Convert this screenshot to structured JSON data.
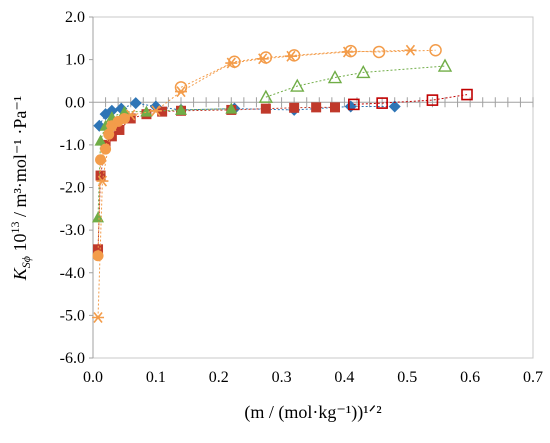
{
  "chart_data": {
    "type": "scatter",
    "xlabel": "(m / (mol·kg⁻¹))¹ᐟ²",
    "ylabel_parts": {
      "k": "K",
      "sub": "Sϕ",
      "mid": " 10",
      "exp": "13",
      "units": " / m³·mol⁻¹ ·Pa⁻¹"
    },
    "xlim": [
      0,
      0.7
    ],
    "ylim": [
      -6.0,
      2.0
    ],
    "x_ticks": [
      "0.0",
      "0.1",
      "0.2",
      "0.3",
      "0.4",
      "0.5",
      "0.6",
      "0.7"
    ],
    "y_ticks": [
      "-6.0",
      "-5.0",
      "-4.0",
      "-3.0",
      "-2.0",
      "-1.0",
      "0.0",
      "1.0",
      "2.0"
    ],
    "grid": false,
    "series": [
      {
        "marker": "diamond-filled",
        "color": "#2e75b6",
        "points": [
          [
            0.01,
            -0.55
          ],
          [
            0.02,
            -0.28
          ],
          [
            0.03,
            -0.2
          ],
          [
            0.045,
            -0.15
          ],
          [
            0.068,
            -0.02
          ],
          [
            0.1,
            -0.1
          ],
          [
            0.14,
            -0.18
          ],
          [
            0.225,
            -0.15
          ],
          [
            0.32,
            -0.18
          ],
          [
            0.41,
            -0.1
          ],
          [
            0.48,
            -0.1
          ]
        ]
      },
      {
        "marker": "square-filled",
        "color": "#c0392b",
        "points": [
          [
            0.008,
            -3.45
          ],
          [
            0.012,
            -1.72
          ],
          [
            0.02,
            -1.0
          ],
          [
            0.03,
            -0.8
          ],
          [
            0.042,
            -0.65
          ],
          [
            0.06,
            -0.38
          ],
          [
            0.085,
            -0.28
          ],
          [
            0.11,
            -0.22
          ],
          [
            0.14,
            -0.2
          ],
          [
            0.22,
            -0.18
          ],
          [
            0.275,
            -0.15
          ],
          [
            0.32,
            -0.13
          ],
          [
            0.355,
            -0.12
          ],
          [
            0.385,
            -0.12
          ]
        ]
      },
      {
        "marker": "square-open",
        "color": "#c00000",
        "points": [
          [
            0.415,
            -0.05
          ],
          [
            0.46,
            -0.02
          ],
          [
            0.54,
            0.05
          ],
          [
            0.595,
            0.18
          ]
        ]
      },
      {
        "marker": "triangle-filled",
        "color": "#70ad47",
        "points": [
          [
            0.008,
            -2.7
          ],
          [
            0.012,
            -0.9
          ],
          [
            0.02,
            -0.55
          ],
          [
            0.03,
            -0.35
          ],
          [
            0.05,
            -0.22
          ],
          [
            0.085,
            -0.22
          ],
          [
            0.14,
            -0.18
          ],
          [
            0.22,
            -0.15
          ]
        ]
      },
      {
        "marker": "triangle-open",
        "color": "#70ad47",
        "points": [
          [
            0.275,
            0.12
          ],
          [
            0.325,
            0.38
          ],
          [
            0.385,
            0.58
          ],
          [
            0.43,
            0.7
          ],
          [
            0.56,
            0.85
          ]
        ]
      },
      {
        "marker": "circle-filled",
        "color": "#f39c4a",
        "points": [
          [
            0.008,
            -3.6
          ],
          [
            0.012,
            -1.35
          ],
          [
            0.02,
            -1.1
          ],
          [
            0.025,
            -0.75
          ],
          [
            0.03,
            -0.55
          ],
          [
            0.04,
            -0.45
          ],
          [
            0.05,
            -0.38
          ]
        ]
      },
      {
        "marker": "circle-open",
        "color": "#f39c4a",
        "points": [
          [
            0.14,
            0.35
          ],
          [
            0.225,
            0.95
          ],
          [
            0.275,
            1.05
          ],
          [
            0.32,
            1.1
          ],
          [
            0.41,
            1.2
          ],
          [
            0.455,
            1.18
          ],
          [
            0.545,
            1.22
          ]
        ]
      },
      {
        "marker": "asterisk",
        "color": "#f39c4a",
        "points": [
          [
            0.008,
            -5.05
          ],
          [
            0.015,
            -1.85
          ],
          [
            0.03,
            -0.55
          ],
          [
            0.06,
            -0.3
          ],
          [
            0.1,
            -0.2
          ],
          [
            0.14,
            0.25
          ],
          [
            0.22,
            0.92
          ],
          [
            0.27,
            1.02
          ],
          [
            0.315,
            1.08
          ],
          [
            0.405,
            1.18
          ],
          [
            0.505,
            1.22
          ]
        ]
      }
    ]
  }
}
